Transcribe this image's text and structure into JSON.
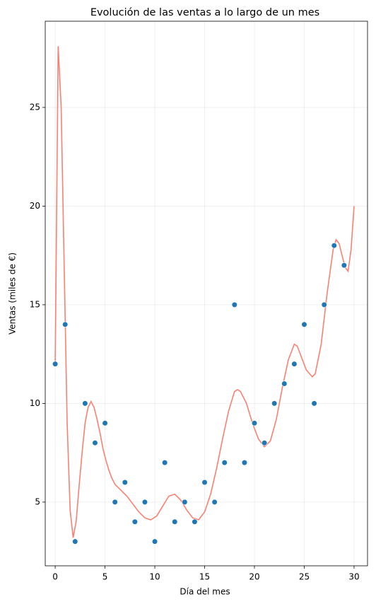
{
  "chart_data": {
    "type": "scatter",
    "title": "Evolución de las ventas a lo largo de un mes",
    "x_label": "Día del mes",
    "y_label": "Ventas (miles de €)",
    "x": [
      0,
      1,
      2,
      3,
      4,
      5,
      6,
      7,
      8,
      9,
      10,
      11,
      12,
      13,
      14,
      15,
      16,
      17,
      18,
      19,
      20,
      21,
      22,
      23,
      24,
      25,
      26,
      27,
      28,
      29
    ],
    "values": [
      12,
      14,
      3,
      10,
      8,
      9,
      5,
      6,
      4,
      5,
      3,
      7,
      4,
      5,
      4,
      6,
      5,
      7,
      15,
      7,
      9,
      8,
      10,
      11,
      12,
      14,
      10,
      15,
      18,
      17
    ],
    "color": "#1f77b4",
    "line": {
      "type": "line",
      "color": "#fa8072",
      "x": [
        0,
        0.3,
        0.6,
        0.9,
        1.2,
        1.5,
        1.8,
        2.1,
        2.4,
        2.7,
        3.0,
        3.3,
        3.6,
        3.9,
        4.2,
        4.5,
        4.8,
        5.1,
        5.4,
        5.7,
        6.0,
        6.6,
        7.2,
        7.8,
        8.4,
        9.0,
        9.6,
        10.2,
        10.8,
        11.4,
        12.0,
        12.6,
        13.2,
        13.8,
        14.4,
        15.0,
        15.6,
        16.2,
        16.8,
        17.4,
        18.0,
        18.3,
        18.6,
        19.2,
        19.8,
        20.4,
        21.0,
        21.6,
        22.2,
        22.8,
        23.4,
        24.0,
        24.3,
        24.6,
        25.2,
        25.8,
        26.1,
        26.7,
        27.3,
        27.9,
        28.2,
        28.5,
        29.1,
        29.4,
        29.7,
        30
      ],
      "values": [
        12,
        28.1,
        25,
        17,
        9,
        4.6,
        3.2,
        4,
        5.8,
        7.5,
        9,
        9.8,
        10.1,
        9.8,
        9.2,
        8.5,
        7.7,
        7.1,
        6.6,
        6.2,
        5.9,
        5.6,
        5.3,
        4.9,
        4.5,
        4.2,
        4.1,
        4.3,
        4.8,
        5.3,
        5.4,
        5.1,
        4.6,
        4.2,
        4.1,
        4.5,
        5.4,
        6.7,
        8.2,
        9.6,
        10.6,
        10.7,
        10.6,
        10,
        9,
        8.2,
        7.8,
        8.1,
        9.2,
        10.8,
        12.2,
        13,
        12.9,
        12.5,
        11.7,
        11.35,
        11.5,
        13,
        15.6,
        17.8,
        18.3,
        18.1,
        16.9,
        16.7,
        17.8,
        20
      ]
    },
    "xlim": [
      -1.0,
      31.35
    ],
    "ylim": [
      1.77,
      29.37
    ],
    "xticks": [
      0,
      5,
      10,
      15,
      20,
      25,
      30
    ],
    "yticks": [
      5,
      10,
      15,
      20,
      25
    ],
    "grid": true
  }
}
